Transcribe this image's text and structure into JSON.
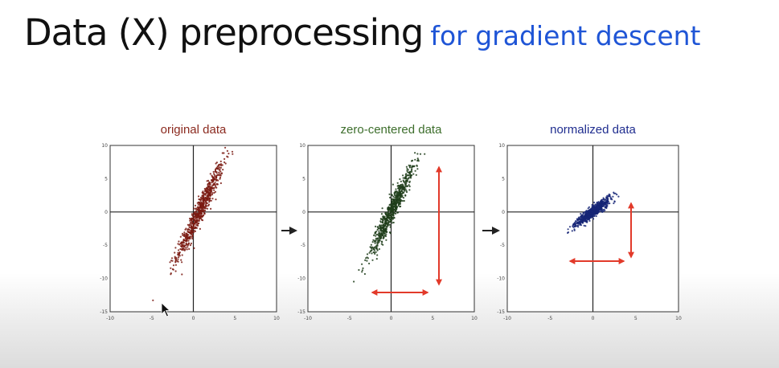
{
  "slide": {
    "title_main": "Data (X) preprocessing",
    "title_accent": "for gradient descent",
    "accent_color": "#1f55d6"
  },
  "chart_data": [
    {
      "type": "scatter",
      "title": "original data",
      "title_color": "#8b2a1f",
      "point_color": "#7a1a12",
      "xlim": [
        -10,
        10
      ],
      "ylim": [
        -15,
        10
      ],
      "x_ticks": [
        "-10",
        "-5",
        "0",
        "5",
        "10"
      ],
      "y_ticks": [
        "10",
        "5",
        "0",
        "-5",
        "-10",
        "-15"
      ],
      "distribution": {
        "center_x": 0.8,
        "center_y": 0.2,
        "spread_x": 1.4,
        "spread_y": 3.6,
        "correlation": 0.96,
        "n_points": 700
      },
      "grid": false
    },
    {
      "type": "scatter",
      "title": "zero-centered data",
      "title_color": "#3d6e2c",
      "point_color": "#1f3d1a",
      "xlim": [
        -10,
        10
      ],
      "ylim": [
        -15,
        10
      ],
      "x_ticks": [
        "-10",
        "-5",
        "0",
        "5",
        "10"
      ],
      "y_ticks": [
        "10",
        "5",
        "0",
        "-5",
        "-10",
        "-15"
      ],
      "distribution": {
        "center_x": 0,
        "center_y": 0,
        "spread_x": 1.4,
        "spread_y": 3.6,
        "correlation": 0.96,
        "n_points": 700
      },
      "grid": false
    },
    {
      "type": "scatter",
      "title": "normalized data",
      "title_color": "#1f2d8f",
      "point_color": "#152476",
      "xlim": [
        -10,
        10
      ],
      "ylim": [
        -15,
        10
      ],
      "x_ticks": [
        "-10",
        "-5",
        "0",
        "5",
        "10"
      ],
      "y_ticks": [
        "10",
        "5",
        "0",
        "-5",
        "-10",
        "-15"
      ],
      "distribution": {
        "center_x": 0,
        "center_y": 0,
        "spread_x": 1.0,
        "spread_y": 1.0,
        "correlation": 0.9,
        "n_points": 700
      },
      "grid": false
    }
  ],
  "arrow_color": "#e23a2a"
}
